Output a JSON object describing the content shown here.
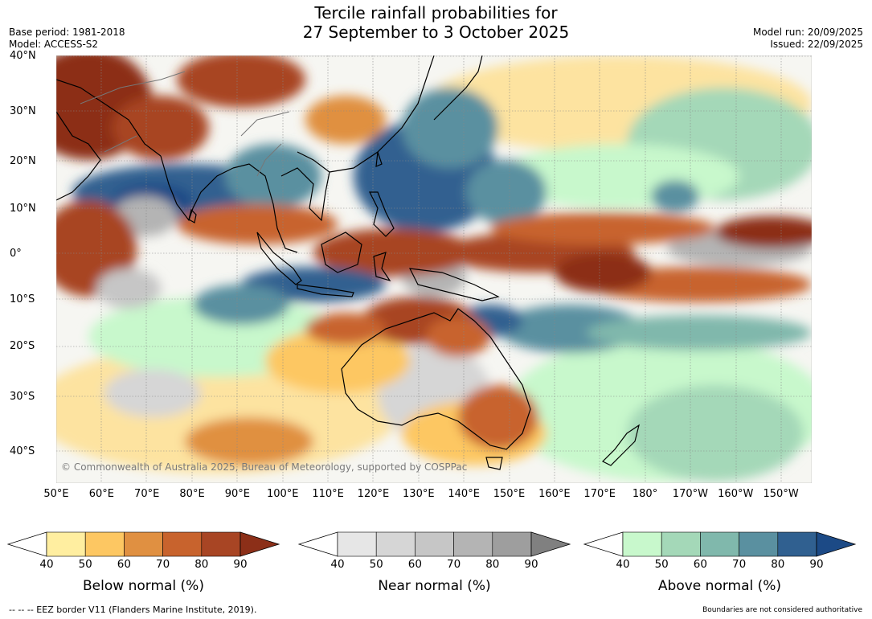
{
  "title_line1": "Tercile rainfall probabilities for",
  "title_line2": "27 September to 3 October 2025",
  "base_period": "Base period: 1981-2018",
  "model": "Model: ACCESS-S2",
  "model_run": "Model run: 20/09/2025",
  "issued": "Issued: 22/09/2025",
  "lat_labels": [
    "40°N",
    "30°N",
    "20°N",
    "10°N",
    "0°",
    "10°S",
    "20°S",
    "30°S",
    "40°S"
  ],
  "lon_labels": [
    "50°E",
    "60°E",
    "70°E",
    "80°E",
    "90°E",
    "100°E",
    "110°E",
    "120°E",
    "130°E",
    "140°E",
    "150°E",
    "160°E",
    "170°E",
    "180°",
    "170°W",
    "160°W",
    "150°W"
  ],
  "copyright": "© Commonwealth of Australia 2025, Bureau of Meteorology, supported by COSPPac",
  "colorbars": {
    "below": {
      "title": "Below normal (%)",
      "ticks": [
        "40",
        "50",
        "60",
        "70",
        "80",
        "90"
      ],
      "colors": [
        "#ffffff",
        "#ffeea0",
        "#fdc762",
        "#e09041",
        "#c8632d",
        "#a84524",
        "#8c2f18"
      ]
    },
    "near": {
      "title": "Near normal (%)",
      "ticks": [
        "40",
        "50",
        "60",
        "70",
        "80",
        "90"
      ],
      "colors": [
        "#ffffff",
        "#e6e6e6",
        "#d6d6d6",
        "#c6c6c6",
        "#b4b4b4",
        "#9e9e9e",
        "#808080"
      ]
    },
    "above": {
      "title": "Above normal (%)",
      "ticks": [
        "40",
        "50",
        "60",
        "70",
        "80",
        "90"
      ],
      "colors": [
        "#ffffff",
        "#c8f8cc",
        "#a4d8b8",
        "#80b8ac",
        "#5a90a0",
        "#306090",
        "#1c4a86"
      ]
    }
  },
  "footer_left": "--  --  -- EEZ border V11 (Flanders Marine Institute, 2019).",
  "footer_right": "Boundaries are not considered authoritative"
}
